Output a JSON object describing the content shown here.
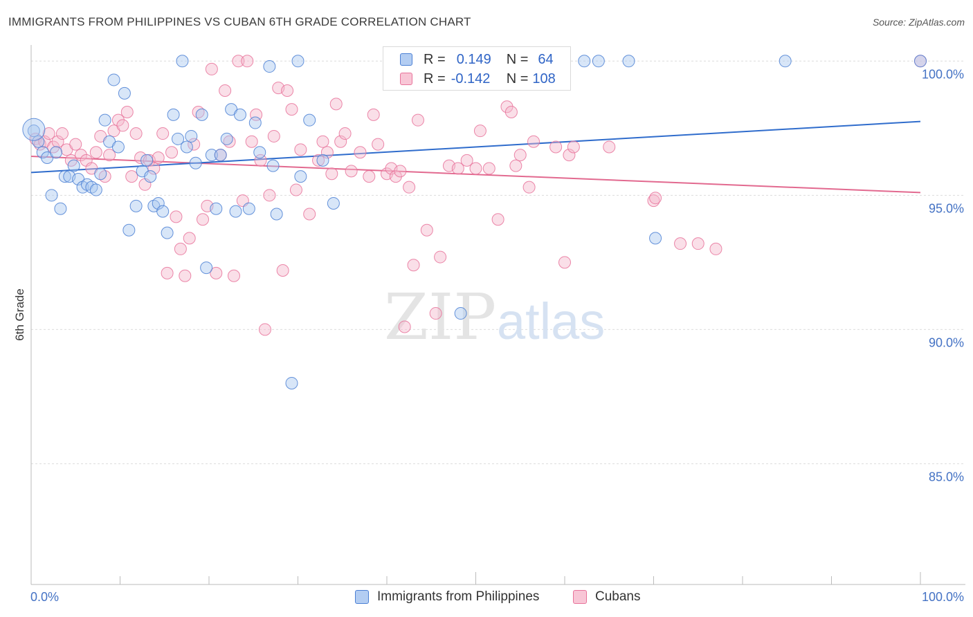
{
  "title": "IMMIGRANTS FROM PHILIPPINES VS CUBAN 6TH GRADE CORRELATION CHART",
  "source": "Source: ZipAtlas.com",
  "watermark": {
    "zip": "ZIP",
    "atlas": "atlas"
  },
  "legend": {
    "rows": [
      {
        "r_label": "R =",
        "r_value": "0.149",
        "n_label": "N =",
        "n_value": "64"
      },
      {
        "r_label": "R =",
        "r_value": "-0.142",
        "n_label": "N =",
        "n_value": "108"
      }
    ]
  },
  "bottom_legend": {
    "series1": "Immigrants from Philippines",
    "series2": "Cubans"
  },
  "chart_data": {
    "type": "scatter",
    "title": "IMMIGRANTS FROM PHILIPPINES VS CUBAN 6TH GRADE CORRELATION CHART",
    "xlabel": "",
    "ylabel": "6th Grade",
    "xlim": [
      0,
      100
    ],
    "ylim": [
      80.5,
      100.6
    ],
    "x_tick_labels": [
      "0.0%",
      "100.0%"
    ],
    "y_ticks": [
      85,
      90,
      95,
      100
    ],
    "y_tick_labels": [
      "85.0%",
      "90.0%",
      "95.0%",
      "100.0%"
    ],
    "grid": true,
    "colors": {
      "blue": "#4a7fd4",
      "blue_fill": "#a9c7f0",
      "pink": "#e8729a",
      "pink_fill": "#f5b8cb",
      "blue_line": "#2f6ccc",
      "pink_line": "#e2698f"
    },
    "series": [
      {
        "name": "Immigrants from Philippines",
        "color": "#4a7fd4",
        "trend": [
          [
            0,
            95.85
          ],
          [
            100,
            97.75
          ]
        ],
        "points": [
          [
            0.3,
            97.4
          ],
          [
            0.8,
            97.0
          ],
          [
            1.3,
            96.6
          ],
          [
            1.8,
            96.4
          ],
          [
            2.3,
            95.0
          ],
          [
            2.8,
            96.6
          ],
          [
            3.3,
            94.5
          ],
          [
            3.8,
            95.7
          ],
          [
            4.3,
            95.7
          ],
          [
            4.8,
            96.1
          ],
          [
            5.3,
            95.6
          ],
          [
            5.8,
            95.3
          ],
          [
            6.3,
            95.4
          ],
          [
            6.8,
            95.3
          ],
          [
            7.3,
            95.2
          ],
          [
            7.8,
            95.8
          ],
          [
            8.3,
            97.8
          ],
          [
            8.8,
            97.0
          ],
          [
            9.3,
            99.3
          ],
          [
            9.8,
            96.8
          ],
          [
            10.5,
            98.8
          ],
          [
            11.0,
            93.7
          ],
          [
            11.8,
            94.6
          ],
          [
            12.5,
            95.9
          ],
          [
            13.0,
            96.3
          ],
          [
            13.4,
            95.7
          ],
          [
            13.8,
            94.6
          ],
          [
            14.3,
            94.7
          ],
          [
            14.8,
            94.4
          ],
          [
            15.3,
            93.6
          ],
          [
            16.0,
            98.0
          ],
          [
            16.5,
            97.1
          ],
          [
            17.0,
            100.0
          ],
          [
            17.5,
            96.8
          ],
          [
            18.0,
            97.2
          ],
          [
            18.5,
            96.2
          ],
          [
            19.2,
            98.0
          ],
          [
            19.7,
            92.3
          ],
          [
            20.3,
            96.5
          ],
          [
            20.8,
            94.5
          ],
          [
            21.3,
            96.5
          ],
          [
            22.0,
            97.1
          ],
          [
            22.5,
            98.2
          ],
          [
            23.0,
            94.4
          ],
          [
            23.5,
            98.0
          ],
          [
            24.5,
            94.5
          ],
          [
            25.2,
            97.7
          ],
          [
            25.7,
            96.6
          ],
          [
            26.8,
            99.8
          ],
          [
            27.2,
            96.1
          ],
          [
            27.6,
            94.3
          ],
          [
            29.3,
            88.0
          ],
          [
            30.0,
            100.0
          ],
          [
            30.3,
            95.7
          ],
          [
            31.3,
            97.8
          ],
          [
            32.8,
            96.3
          ],
          [
            34.0,
            94.7
          ],
          [
            48.3,
            90.6
          ],
          [
            62.2,
            100.0
          ],
          [
            63.8,
            100.0
          ],
          [
            67.2,
            100.0
          ],
          [
            70.2,
            93.4
          ],
          [
            84.8,
            100.0
          ],
          [
            100.0,
            100.0
          ]
        ]
      },
      {
        "name": "Cubans",
        "color": "#e8729a",
        "trend": [
          [
            0,
            96.45
          ],
          [
            100,
            95.1
          ]
        ],
        "points": [
          [
            0.5,
            97.1
          ],
          [
            1.0,
            96.9
          ],
          [
            1.5,
            97.0
          ],
          [
            2.0,
            97.3
          ],
          [
            2.5,
            96.8
          ],
          [
            3.0,
            97.0
          ],
          [
            3.5,
            97.3
          ],
          [
            4.0,
            96.7
          ],
          [
            4.5,
            96.3
          ],
          [
            5.0,
            96.9
          ],
          [
            5.6,
            96.5
          ],
          [
            6.2,
            96.3
          ],
          [
            6.8,
            96.0
          ],
          [
            7.3,
            96.6
          ],
          [
            7.8,
            97.2
          ],
          [
            8.3,
            95.7
          ],
          [
            8.8,
            96.5
          ],
          [
            9.3,
            97.4
          ],
          [
            9.8,
            97.8
          ],
          [
            10.3,
            97.6
          ],
          [
            10.8,
            98.1
          ],
          [
            11.3,
            95.7
          ],
          [
            11.8,
            97.3
          ],
          [
            12.3,
            96.4
          ],
          [
            12.8,
            95.4
          ],
          [
            13.3,
            96.3
          ],
          [
            13.8,
            96.0
          ],
          [
            14.3,
            96.4
          ],
          [
            14.8,
            97.3
          ],
          [
            15.3,
            92.1
          ],
          [
            15.8,
            96.6
          ],
          [
            16.3,
            94.2
          ],
          [
            16.8,
            93.0
          ],
          [
            17.3,
            92.0
          ],
          [
            17.8,
            93.4
          ],
          [
            18.3,
            96.9
          ],
          [
            18.8,
            98.1
          ],
          [
            19.3,
            94.1
          ],
          [
            19.8,
            94.6
          ],
          [
            20.3,
            99.7
          ],
          [
            20.8,
            92.1
          ],
          [
            21.3,
            96.5
          ],
          [
            21.8,
            98.9
          ],
          [
            22.3,
            97.0
          ],
          [
            22.8,
            92.0
          ],
          [
            23.3,
            100.0
          ],
          [
            23.8,
            94.8
          ],
          [
            24.3,
            100.0
          ],
          [
            24.8,
            97.0
          ],
          [
            25.3,
            98.0
          ],
          [
            25.8,
            96.3
          ],
          [
            26.3,
            90.0
          ],
          [
            26.8,
            95.0
          ],
          [
            27.3,
            97.2
          ],
          [
            27.8,
            99.0
          ],
          [
            28.3,
            92.2
          ],
          [
            28.8,
            98.9
          ],
          [
            29.3,
            98.2
          ],
          [
            29.8,
            95.2
          ],
          [
            30.3,
            96.7
          ],
          [
            31.3,
            94.3
          ],
          [
            32.3,
            96.3
          ],
          [
            32.8,
            97.0
          ],
          [
            33.3,
            96.6
          ],
          [
            33.8,
            95.8
          ],
          [
            34.3,
            98.4
          ],
          [
            34.8,
            97.0
          ],
          [
            35.3,
            97.3
          ],
          [
            36.0,
            95.9
          ],
          [
            37.0,
            96.6
          ],
          [
            38.0,
            95.7
          ],
          [
            39.0,
            96.9
          ],
          [
            40.0,
            95.8
          ],
          [
            40.5,
            96.0
          ],
          [
            41.0,
            95.7
          ],
          [
            41.5,
            95.9
          ],
          [
            42.0,
            90.1
          ],
          [
            42.5,
            95.3
          ],
          [
            43.0,
            92.4
          ],
          [
            43.5,
            97.8
          ],
          [
            44.5,
            93.7
          ],
          [
            46.0,
            92.7
          ],
          [
            47.0,
            96.1
          ],
          [
            48.0,
            96.0
          ],
          [
            49.0,
            96.3
          ],
          [
            50.0,
            96.0
          ],
          [
            51.5,
            96.0
          ],
          [
            52.5,
            94.1
          ],
          [
            53.5,
            98.3
          ],
          [
            54.0,
            98.1
          ],
          [
            54.5,
            96.1
          ],
          [
            55.0,
            96.5
          ],
          [
            56.0,
            95.3
          ],
          [
            56.5,
            97.0
          ],
          [
            59.0,
            96.8
          ],
          [
            60.0,
            92.5
          ],
          [
            60.5,
            96.5
          ],
          [
            61.0,
            96.8
          ],
          [
            70.0,
            94.8
          ],
          [
            70.2,
            94.9
          ],
          [
            73.0,
            93.2
          ],
          [
            75.0,
            93.2
          ],
          [
            77.0,
            93.0
          ],
          [
            38.5,
            98.0
          ],
          [
            45.5,
            90.6
          ],
          [
            50.5,
            97.4
          ],
          [
            65.0,
            96.8
          ],
          [
            100.0,
            100.0
          ]
        ]
      }
    ]
  }
}
